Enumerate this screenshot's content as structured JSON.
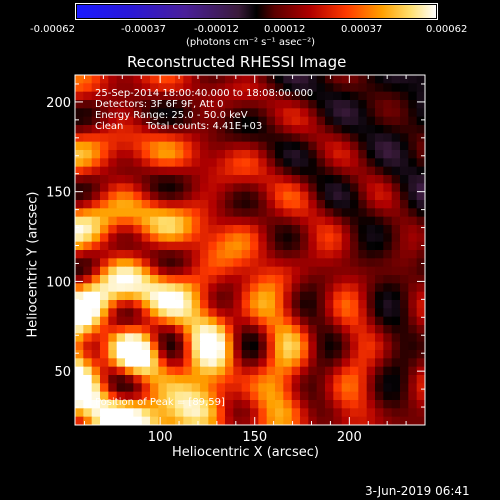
{
  "colorbar": {
    "tick_labels": [
      "-0.00062",
      "-0.00037",
      "-0.00012",
      "0.00012",
      "0.00037",
      "0.00062"
    ],
    "unit_label": "(photons cm⁻² s⁻¹ asec⁻²)"
  },
  "chart_data": {
    "type": "heatmap",
    "title": "Reconstructed RHESSI Image",
    "xlabel": "Heliocentric X (arcsec)",
    "ylabel": "Heliocentric Y (arcsec)",
    "xlim": [
      55,
      240
    ],
    "ylim": [
      20,
      215
    ],
    "xticks": [
      100,
      150,
      200
    ],
    "yticks": [
      50,
      100,
      150,
      200
    ],
    "color_range": [
      -0.00062,
      0.00062
    ],
    "colormap": [
      "#1a1aff",
      "#2a18d6",
      "#4a1f9a",
      "#3a1a3a",
      "#000000",
      "#5a0000",
      "#b00000",
      "#ff3a00",
      "#ffa000",
      "#ffe070",
      "#ffffff"
    ],
    "peak_position": [
      89,
      59
    ]
  },
  "annotations": {
    "time_range": "25-Sep-2014 18:00:40.000 to 18:08:00.000",
    "detectors": "Detectors: 3F 6F 9F, Att 0",
    "energy_range": "Energy Range: 25.0 - 50.0 keV",
    "clean_label": "Clean",
    "total_counts": "Total counts: 4.41E+03",
    "peak_label": "Position of Peak = [89,59]"
  },
  "footer": {
    "date": "3-Jun-2019 06:41"
  }
}
